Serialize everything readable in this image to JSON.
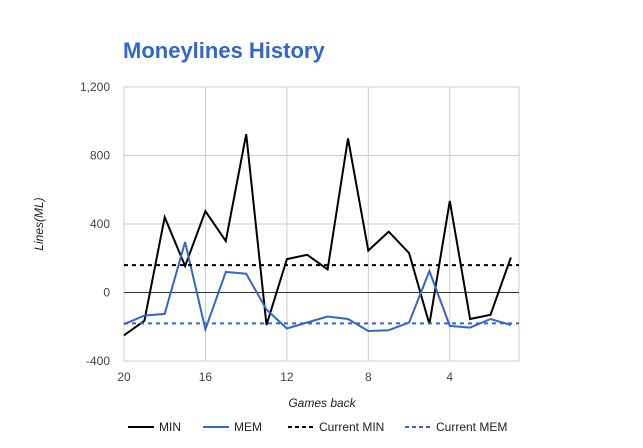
{
  "chart_data": {
    "type": "line",
    "title": "Moneylines History",
    "xlabel": "Games back",
    "ylabel": "Lines(ML)",
    "ylim": [
      -400,
      1200
    ],
    "y_ticks": [
      -400,
      0,
      400,
      800,
      1200
    ],
    "y_tick_labels": [
      "-400",
      "0",
      "400",
      "800",
      "1,200"
    ],
    "xlim": [
      20,
      0.6
    ],
    "x_ticks": [
      20,
      16,
      12,
      8,
      4
    ],
    "x_tick_labels": [
      "20",
      "16",
      "12",
      "8",
      "4"
    ],
    "x": [
      20,
      19,
      18,
      17,
      16,
      15,
      14,
      13,
      12,
      11,
      10,
      9,
      8,
      7,
      6,
      5,
      4,
      3,
      2,
      1
    ],
    "grid": true,
    "legend_position": "bottom",
    "series": [
      {
        "name": "MIN",
        "color": "#000000",
        "style": "solid",
        "values": [
          -250,
          -165,
          440,
          155,
          475,
          300,
          925,
          -190,
          195,
          220,
          135,
          900,
          245,
          355,
          230,
          -185,
          535,
          -155,
          -130,
          205
        ]
      },
      {
        "name": "MEM",
        "color": "#3366cc",
        "style": "solid",
        "values": [
          -185,
          -135,
          -125,
          295,
          -215,
          120,
          110,
          -100,
          -210,
          -175,
          -140,
          -155,
          -225,
          -220,
          -175,
          125,
          -195,
          -205,
          -155,
          -190
        ]
      },
      {
        "name": "Current MIN",
        "color": "#000000",
        "style": "dashed",
        "constant": 160
      },
      {
        "name": "Current MEM",
        "color": "#3366cc",
        "style": "dashed",
        "constant": -180
      }
    ]
  }
}
